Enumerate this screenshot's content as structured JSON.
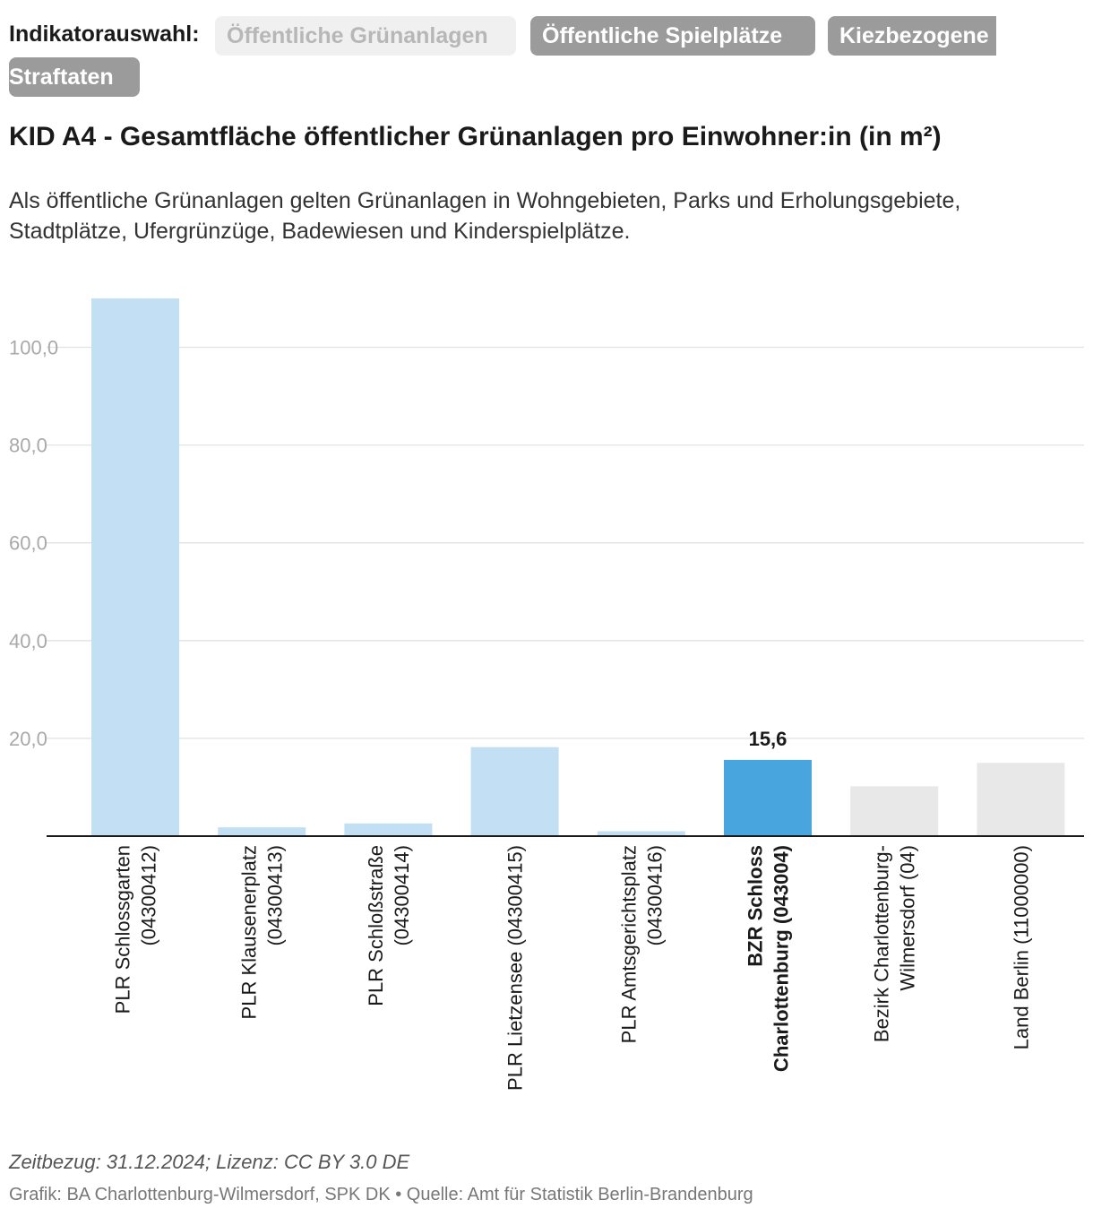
{
  "indicator": {
    "label": "Indikatorauswahl:",
    "options": [
      {
        "label": "Öffentliche Grünanlagen",
        "state": "active"
      },
      {
        "label": "Öffentliche Spielplätze",
        "state": "inactive"
      },
      {
        "label": "Kiezbezogene",
        "state": "inactive"
      },
      {
        "label": "Straftaten",
        "state": "inactive"
      }
    ]
  },
  "title": "KID A4 - Gesamtfläche öffentlicher Grünanlagen pro Einwohner:in (in m²)",
  "description": "Als öffentliche Grünanlagen gelten Grünanlagen in Wohngebieten, Parks und Erholungsgebiete, Stadtplätze, Ufergrünzüge, Badewiesen und Kinderspielplätze.",
  "chart_data": {
    "type": "bar",
    "title": "KID A4 - Gesamtfläche öffentlicher Grünanlagen pro Einwohner:in (in m²)",
    "xlabel": "",
    "ylabel": "",
    "ylim": [
      0,
      110
    ],
    "yticks": [
      20,
      40,
      60,
      80,
      100
    ],
    "ytick_labels": [
      "20,0",
      "40,0",
      "60,0",
      "80,0",
      "100,0"
    ],
    "grid": true,
    "categories": [
      [
        "PLR Schlossgarten",
        "(04300412)"
      ],
      [
        "PLR Klausenerplatz",
        "(04300413)"
      ],
      [
        "PLR Schloßstraße",
        "(04300414)"
      ],
      [
        "PLR Lietzensee (04300415)"
      ],
      [
        "PLR Amtsgerichtsplatz",
        "(04300416)"
      ],
      [
        "BZR Schloss",
        "Charlottenburg (043004)"
      ],
      [
        "Bezirk Charlottenburg-",
        "Wilmersdorf (04)"
      ],
      [
        "Land Berlin (11000000)"
      ]
    ],
    "values": [
      110.0,
      1.8,
      2.6,
      18.2,
      1.0,
      15.6,
      10.2,
      15.0
    ],
    "bar_groups": [
      "plr",
      "plr",
      "plr",
      "plr",
      "plr",
      "bzr",
      "reference",
      "reference"
    ],
    "highlight_index": 5,
    "highlight_label": "15,6",
    "colors": {
      "plr": "#c2dff3",
      "bzr": "#49a5de",
      "reference": "#e8e8e8",
      "grid": "#e2e2e2",
      "axis": "#1a1a1a",
      "tick": "#a9a9a9"
    }
  },
  "footer": {
    "meta": "Zeitbezug: 31.12.2024; Lizenz: CC BY 3.0 DE",
    "source": "Grafik: BA Charlottenburg-Wilmersdorf, SPK DK • Quelle: Amt für Statistik Berlin-Brandenburg"
  }
}
